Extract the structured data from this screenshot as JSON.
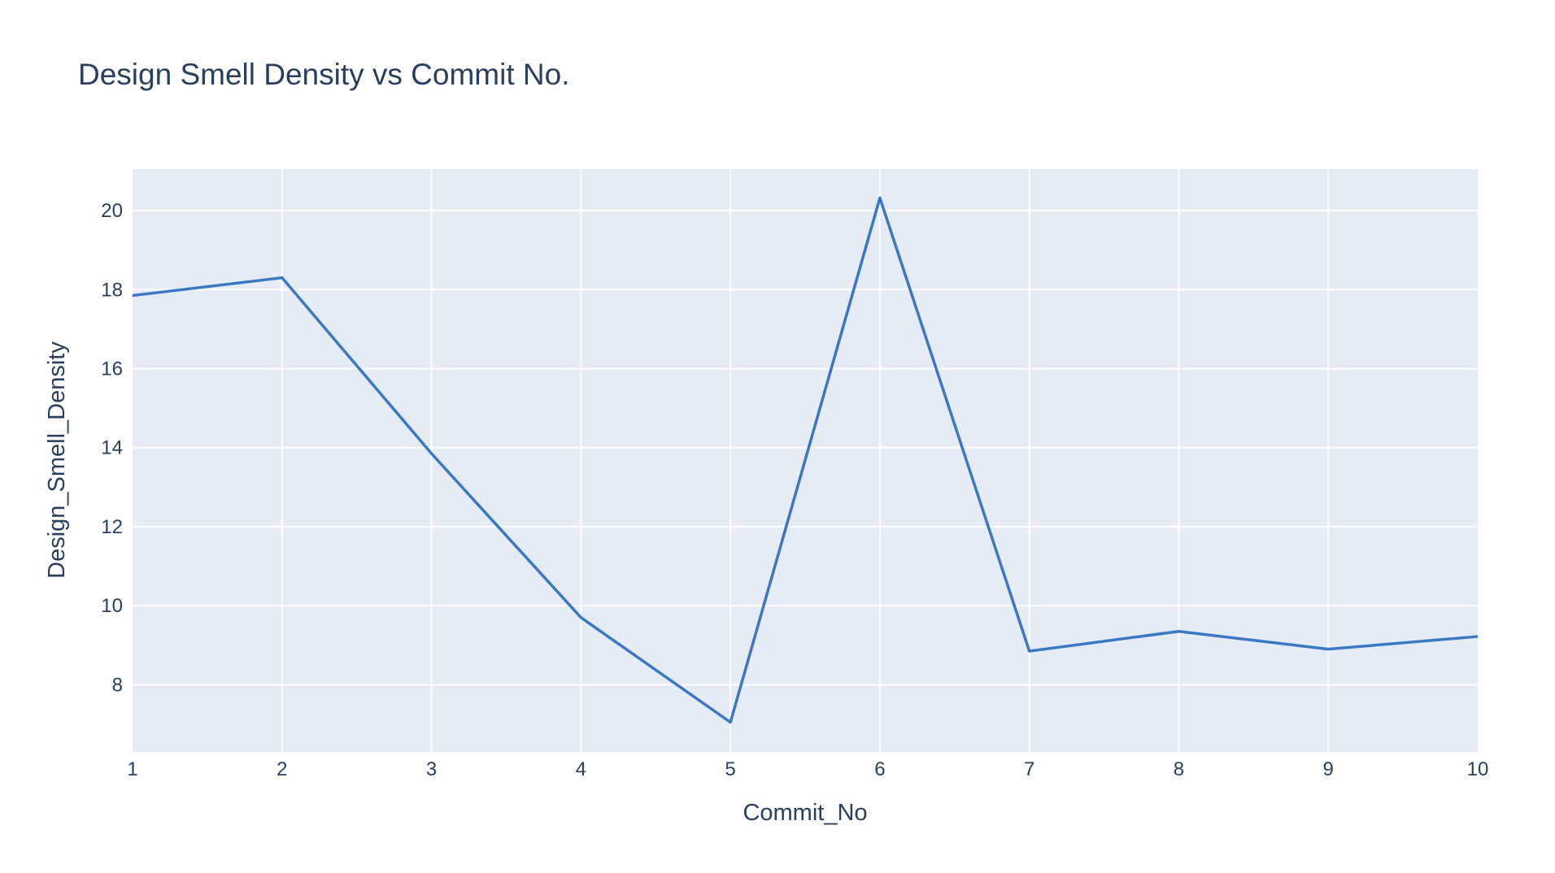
{
  "chart_data": {
    "type": "line",
    "title": "Design Smell Density vs Commit No.",
    "xlabel": "Commit_No",
    "ylabel": "Design_Smell_Density",
    "x": [
      1,
      2,
      3,
      4,
      5,
      6,
      7,
      8,
      9,
      10
    ],
    "series": [
      {
        "values": [
          17.85,
          18.3,
          13.85,
          9.7,
          7.05,
          20.32,
          8.85,
          9.35,
          8.9,
          9.22
        ]
      }
    ],
    "xlim": [
      1,
      10
    ],
    "ylim": [
      6.3,
      21.05
    ],
    "x_ticks": [
      1,
      2,
      3,
      4,
      5,
      6,
      7,
      8,
      9,
      10
    ],
    "y_ticks": [
      8,
      10,
      12,
      14,
      16,
      18,
      20
    ],
    "grid": true,
    "colors": {
      "line": "#3b78c4",
      "plot_background": "#e5ecf6",
      "grid": "#ffffff",
      "text": "#2a3f5f"
    }
  }
}
